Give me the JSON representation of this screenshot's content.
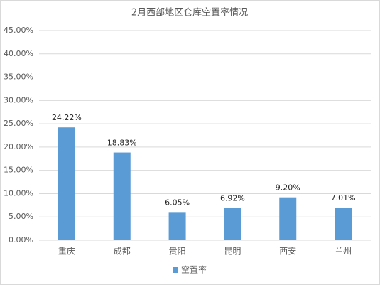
{
  "chart_data": {
    "type": "bar",
    "title": "2月西部地区仓库空置率情况",
    "categories": [
      "重庆",
      "成都",
      "贵阳",
      "昆明",
      "西安",
      "兰州"
    ],
    "series": [
      {
        "name": "空置率",
        "color": "#5b9bd5",
        "values": [
          24.22,
          18.83,
          6.05,
          6.92,
          9.2,
          7.01
        ],
        "value_labels": [
          "24.22%",
          "18.83%",
          "6.05%",
          "6.92%",
          "9.20%",
          "7.01%"
        ]
      }
    ],
    "ylim": [
      0,
      45
    ],
    "yticks": [
      {
        "value": 0,
        "label": "0.00%"
      },
      {
        "value": 5,
        "label": "5.00%"
      },
      {
        "value": 10,
        "label": "10.00%"
      },
      {
        "value": 15,
        "label": "15.00%"
      },
      {
        "value": 20,
        "label": "20.00%"
      },
      {
        "value": 25,
        "label": "25.00%"
      },
      {
        "value": 30,
        "label": "30.00%"
      },
      {
        "value": 35,
        "label": "35.00%"
      },
      {
        "value": 40,
        "label": "40.00%"
      },
      {
        "value": 45,
        "label": "45.00%"
      }
    ],
    "grid": true,
    "legend": "bottom"
  }
}
